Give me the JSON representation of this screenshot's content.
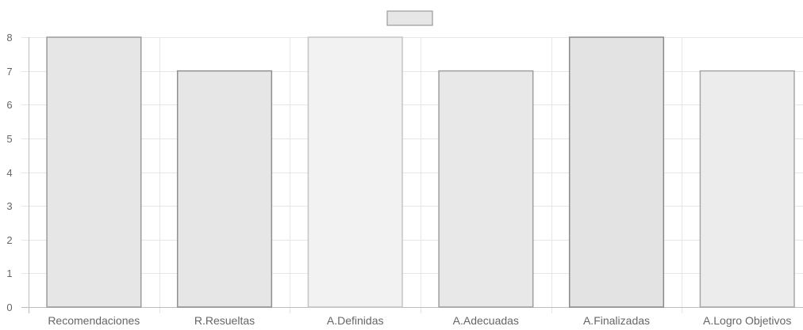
{
  "chart_data": {
    "type": "bar",
    "categories": [
      "Recomendaciones",
      "R.Resueltas",
      "A.Definidas",
      "A.Adecuadas",
      "A.Finalizadas",
      "A.Logro Objetivos"
    ],
    "series": [
      {
        "values": [
          8,
          7,
          8,
          7,
          8,
          7
        ]
      }
    ],
    "ylim": [
      0,
      8
    ],
    "yticks": [
      0,
      1,
      2,
      3,
      4,
      5,
      6,
      7,
      8
    ],
    "grid": true,
    "legend": "top-center",
    "colors": {
      "bar_fills": [
        "#e6e6e6",
        "#e6e6e6",
        "#f2f2f2",
        "#e8e8e8",
        "#e3e3e3",
        "#ececec"
      ],
      "bar_borders": [
        "#9a9a9a",
        "#8f8f8f",
        "#c4c4c4",
        "#9f9f9f",
        "#8a8a8a",
        "#a6a6a6"
      ],
      "legend_fill": "#e6e6e6",
      "legend_border": "#9a9a9a",
      "grid": "#e6e6e6",
      "axis": "#bdbdbd",
      "text": "#666666"
    }
  }
}
